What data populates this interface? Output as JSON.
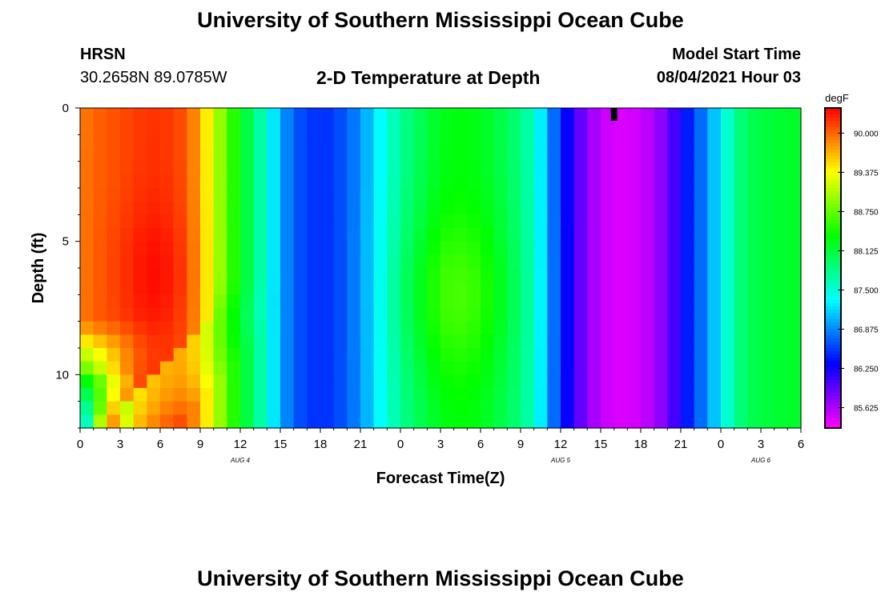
{
  "header": {
    "title_top": "University of Southern Mississippi Ocean Cube",
    "title_bottom": "University of Southern Mississippi Ocean Cube",
    "station": "HRSN",
    "coords": "30.2658N  89.0785W",
    "subtitle": "2-D Temperature at Depth",
    "model_label": "Model Start Time",
    "model_time": "08/04/2021 Hour 03"
  },
  "chart_data": {
    "type": "heatmap",
    "title": "2-D Temperature at Depth",
    "xlabel": "Forecast Time(Z)",
    "ylabel": "Depth (ft)",
    "units": "degF",
    "xlim": [
      0,
      54
    ],
    "ylim": [
      0,
      12
    ],
    "x_ticks": [
      {
        "hour": 0,
        "label": "0"
      },
      {
        "hour": 3,
        "label": "3"
      },
      {
        "hour": 6,
        "label": "6"
      },
      {
        "hour": 9,
        "label": "9"
      },
      {
        "hour": 12,
        "label": "12"
      },
      {
        "hour": 15,
        "label": "15"
      },
      {
        "hour": 18,
        "label": "18"
      },
      {
        "hour": 21,
        "label": "21"
      },
      {
        "hour": 24,
        "label": "0"
      },
      {
        "hour": 27,
        "label": "3"
      },
      {
        "hour": 30,
        "label": "6"
      },
      {
        "hour": 33,
        "label": "9"
      },
      {
        "hour": 36,
        "label": "12"
      },
      {
        "hour": 39,
        "label": "15"
      },
      {
        "hour": 42,
        "label": "18"
      },
      {
        "hour": 45,
        "label": "21"
      },
      {
        "hour": 48,
        "label": "0"
      },
      {
        "hour": 51,
        "label": "3"
      },
      {
        "hour": 54,
        "label": "6"
      }
    ],
    "date_labels": [
      {
        "hour": 12,
        "label": "AUG 4"
      },
      {
        "hour": 36,
        "label": "AUG 5"
      },
      {
        "hour": 51,
        "label": "AUG 6"
      }
    ],
    "y_ticks": [
      {
        "depth": 0,
        "label": "0"
      },
      {
        "depth": 5,
        "label": "5"
      },
      {
        "depth": 10,
        "label": "10"
      }
    ],
    "current_time_marker_hour": 40,
    "colorbar": {
      "label": "degF",
      "min": 85.3,
      "max": 90.4,
      "ticks": [
        "90.000",
        "89.375",
        "88.750",
        "88.125",
        "87.500",
        "86.875",
        "86.250",
        "85.625"
      ]
    },
    "time_profile_hours": [
      0,
      1,
      2,
      3,
      4,
      5,
      6,
      7,
      8,
      9,
      10,
      11,
      12,
      13,
      14,
      15,
      16,
      17,
      18,
      19,
      20,
      21,
      22,
      23,
      24,
      25,
      26,
      27,
      28,
      29,
      30,
      31,
      32,
      33,
      34,
      35,
      36,
      37,
      38,
      39,
      40,
      41,
      42,
      43,
      44,
      45,
      46,
      47,
      48,
      49,
      50,
      51,
      52,
      53,
      54
    ],
    "surface_temperature_degF": [
      89.9,
      90.0,
      90.05,
      90.1,
      90.15,
      90.2,
      90.2,
      90.15,
      90.05,
      89.7,
      89.2,
      88.7,
      88.3,
      87.9,
      87.5,
      87.0,
      86.7,
      86.55,
      86.5,
      86.55,
      86.7,
      86.9,
      87.2,
      87.5,
      87.75,
      87.95,
      88.1,
      88.25,
      88.3,
      88.3,
      88.25,
      88.15,
      88.0,
      87.85,
      87.55,
      87.0,
      86.5,
      86.1,
      85.75,
      85.55,
      85.45,
      85.45,
      85.5,
      85.65,
      85.85,
      86.25,
      86.6,
      86.9,
      87.3,
      87.75,
      88.0,
      88.1,
      88.15,
      88.2,
      88.2
    ]
  }
}
